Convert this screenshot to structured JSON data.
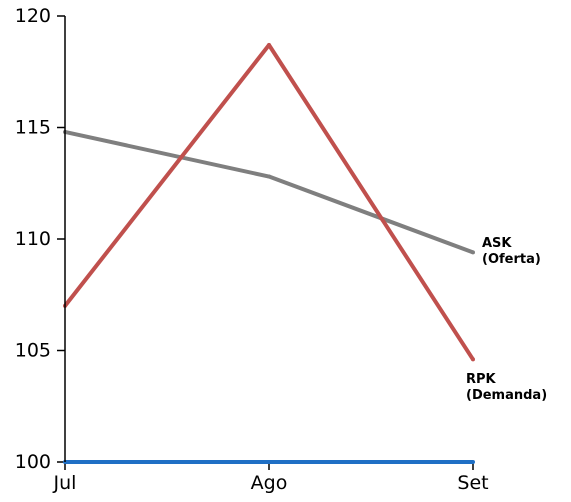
{
  "chart_data": {
    "type": "line",
    "x": [
      "Jul",
      "Ago",
      "Set"
    ],
    "ylim": [
      100,
      120
    ],
    "yticks": [
      "100",
      "105",
      "110",
      "115",
      "120"
    ],
    "grid": false,
    "legend": "none",
    "series": [
      {
        "name": "ASK (Oferta)",
        "label_lines": [
          "ASK",
          "(Oferta)"
        ],
        "color": "#7f7f7f",
        "values": [
          114.8,
          112.8,
          109.4
        ]
      },
      {
        "name": "RPK (Demanda)",
        "label_lines": [
          "RPK",
          "(Demanda)"
        ],
        "color": "#c0504d",
        "values": [
          107.0,
          118.7,
          104.6
        ]
      },
      {
        "values": [
          100,
          100,
          100
        ],
        "color": "#1f6fc5"
      }
    ]
  }
}
